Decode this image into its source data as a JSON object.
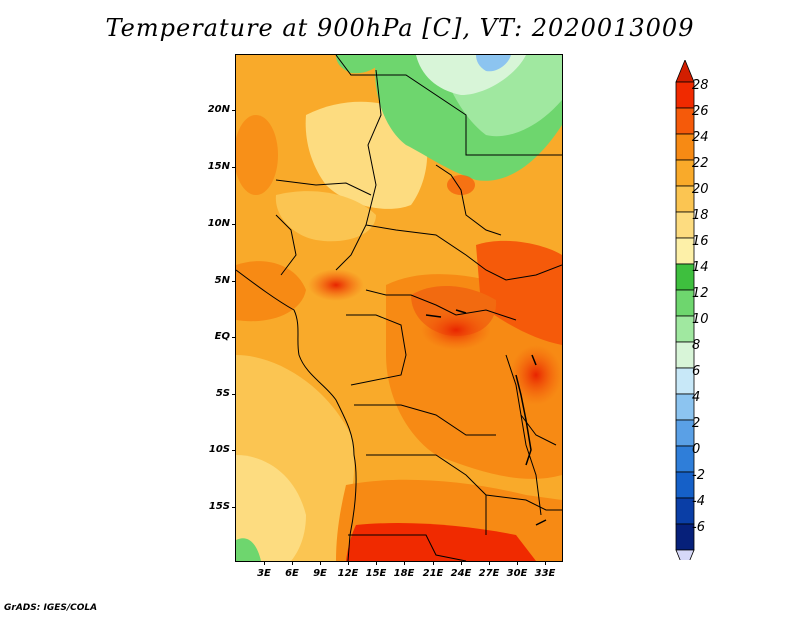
{
  "title": "Temperature at 900hPa [C], VT: 2020013009",
  "footer": "GrADS: IGES/COLA",
  "map": {
    "projection": "lat-lon",
    "region": "Central Africa",
    "lon_range": [
      0,
      35
    ],
    "lat_range": [
      -20,
      25
    ],
    "lat_labels": [
      "20N",
      "15N",
      "10N",
      "5N",
      "EQ",
      "5S",
      "10S",
      "15S"
    ],
    "lon_labels": [
      "3E",
      "6E",
      "9E",
      "12E",
      "15E",
      "18E",
      "21E",
      "24E",
      "27E",
      "30E",
      "33E"
    ],
    "field": "temperature",
    "level": "900hPa",
    "units": "C",
    "valid_time": "2020013009"
  },
  "colorbar": {
    "labels": [
      "28",
      "26",
      "24",
      "22",
      "20",
      "18",
      "16",
      "14",
      "12",
      "10",
      "8",
      "6",
      "4",
      "2",
      "0",
      "-2",
      "-4",
      "-6"
    ],
    "colors": [
      "#f02a00",
      "#f55a0a",
      "#f78a14",
      "#f9aa2a",
      "#fbc552",
      "#fddc80",
      "#fdf0a8",
      "#3ebf3e",
      "#6ed66e",
      "#a0e8a0",
      "#d8f5d8",
      "#c8e8f8",
      "#8cc4f0",
      "#5aa0e6",
      "#2f7ed9",
      "#1560c8",
      "#0a3ea6",
      "#06207a"
    ],
    "top_arrow_color": "#d21e00",
    "bottom_arrow_color": "#d6d8f8"
  }
}
